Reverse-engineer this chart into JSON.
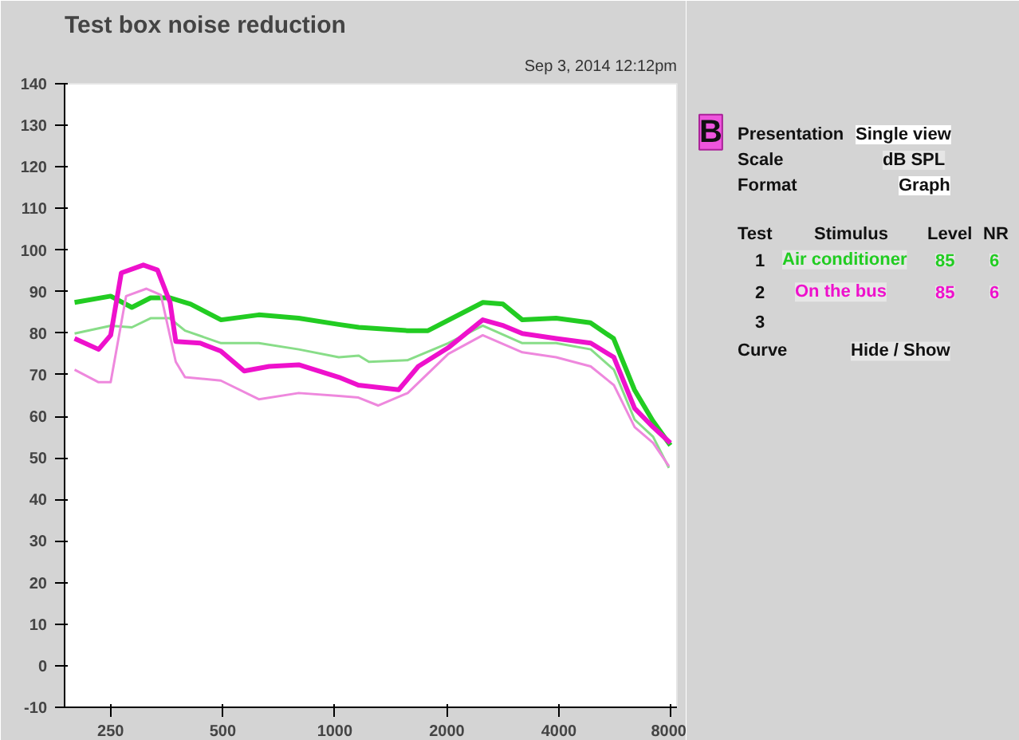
{
  "chart_data": {
    "type": "line",
    "title": "Test box noise reduction",
    "annotations": [
      "Sep 3, 2014 12:12pm",
      "B",
      "Presentation",
      "Single view",
      "Scale",
      "dB SPL",
      "Format",
      "Graph",
      "Test",
      "Stimulus",
      "Level",
      "NR",
      "1",
      "Air conditioner",
      "85",
      "6",
      "2",
      "On the bus",
      "85",
      "6",
      "3",
      "Curve",
      "Hide / Show"
    ],
    "log": "x",
    "grid": false,
    "xlim": [
      188,
      8300
    ],
    "xticks": [
      250,
      500,
      1000,
      2000,
      4000,
      8000
    ],
    "ylim": [
      -10,
      140
    ],
    "yticks": [
      -10,
      0,
      10,
      20,
      30,
      40,
      50,
      60,
      70,
      80,
      90,
      100,
      110,
      120,
      130,
      140
    ],
    "series": [
      {
        "color": "#22cc22",
        "x": [
          200,
          250,
          285,
          320,
          360,
          410,
          495,
          625,
          800,
          1025,
          1160,
          1570,
          1780,
          2500,
          2830,
          3190,
          3930,
          4860,
          5610,
          6380,
          7150,
          7970
        ],
        "values": [
          87.4,
          88.9,
          86.2,
          88.5,
          88.5,
          87,
          83.2,
          84.4,
          83.6,
          82.1,
          81.4,
          80.6,
          80.6,
          87.4,
          87,
          83.2,
          83.6,
          82.5,
          78.7,
          66.4,
          58.9,
          53
        ]
      },
      {
        "color": "#88dd88",
        "x": [
          200,
          250,
          285,
          320,
          360,
          396,
          495,
          625,
          800,
          1025,
          1160,
          1235,
          1570,
          2017,
          2497,
          3190,
          3930,
          4870,
          5620,
          6390,
          7160,
          7900
        ],
        "values": [
          79.9,
          81.8,
          81.4,
          83.6,
          83.6,
          80.6,
          77.6,
          77.6,
          76.1,
          74.2,
          74.6,
          73.1,
          73.5,
          77.6,
          81.8,
          77.6,
          77.6,
          76.1,
          71.2,
          59.2,
          55.1,
          47.6
        ]
      },
      {
        "color": "#ee11cc",
        "x": [
          200,
          232,
          250,
          267,
          306,
          334,
          361,
          374,
          435,
          494,
          571,
          666,
          800,
          1025,
          1157,
          1485,
          1676,
          2017,
          2497,
          2840,
          3190,
          3930,
          4870,
          5620,
          6390,
          7160,
          7970
        ],
        "values": [
          78.7,
          76.1,
          79.5,
          94.5,
          96.4,
          95.2,
          87.4,
          78,
          77.6,
          75.7,
          70.9,
          72,
          72.4,
          69.4,
          67.5,
          66.4,
          72,
          76.5,
          83.2,
          81.8,
          79.9,
          78.7,
          77.6,
          74.2,
          61.9,
          57.4,
          53.6
        ]
      },
      {
        "color": "#ee88dd",
        "x": [
          200,
          232,
          250,
          275,
          312,
          341,
          374,
          396,
          494,
          625,
          800,
          1025,
          1157,
          1307,
          1570,
          2017,
          2497,
          3190,
          3930,
          4870,
          5620,
          6390,
          7160,
          7900
        ],
        "values": [
          71.2,
          68.2,
          68.2,
          88.9,
          90.7,
          89.2,
          73.1,
          69.4,
          68.6,
          64.1,
          65.6,
          64.9,
          64.5,
          62.6,
          65.6,
          75,
          79.5,
          75.4,
          74.2,
          72,
          67.5,
          57.4,
          53.6,
          48
        ]
      }
    ]
  }
}
